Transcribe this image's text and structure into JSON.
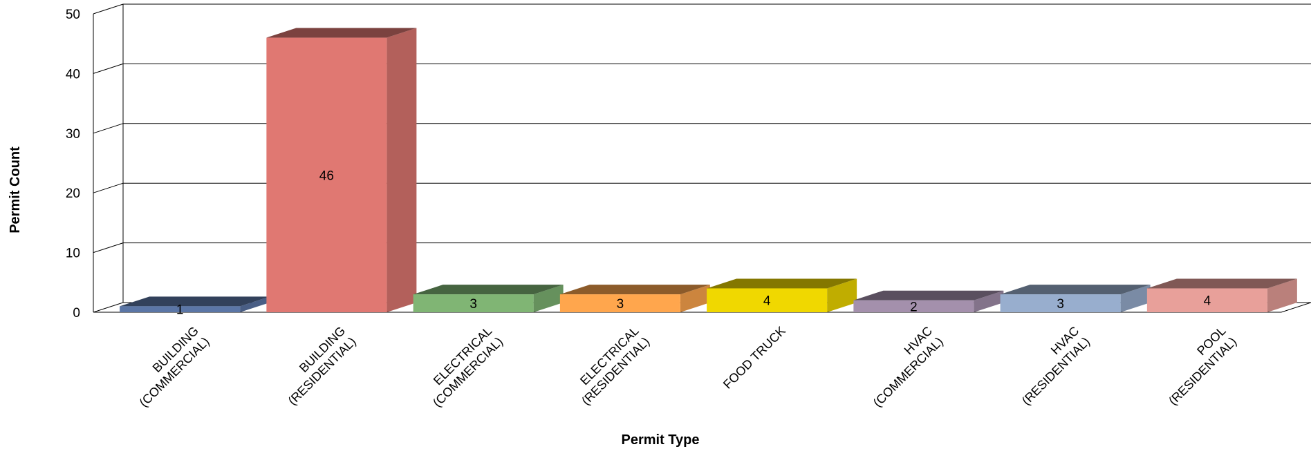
{
  "chart_data": {
    "type": "bar",
    "title": "",
    "xlabel": "Permit Type",
    "ylabel": "Permit Count",
    "ylim": [
      0,
      50
    ],
    "yticks": [
      0,
      10,
      20,
      30,
      40,
      50
    ],
    "grid": true,
    "legend": "none",
    "categories": [
      [
        "BUILDING",
        "(COMMERCIAL)"
      ],
      [
        "BUILDING",
        "(RESIDENTIAL)"
      ],
      [
        "ELECTRICAL",
        "(COMMERCIAL)"
      ],
      [
        "ELECTRICAL",
        "(RESIDENTIAL)"
      ],
      [
        "FOOD TRUCK"
      ],
      [
        "HVAC",
        "(COMMERCIAL)"
      ],
      [
        "HVAC",
        "(RESIDENTIAL)"
      ],
      [
        "POOL",
        "(RESIDENTIAL)"
      ]
    ],
    "values": [
      1,
      46,
      3,
      3,
      4,
      2,
      3,
      4
    ],
    "colors": [
      "#5b76a6",
      "#e07872",
      "#80b574",
      "#ffa64d",
      "#f0d800",
      "#a490ac",
      "#98aece",
      "#e8a09a"
    ]
  }
}
